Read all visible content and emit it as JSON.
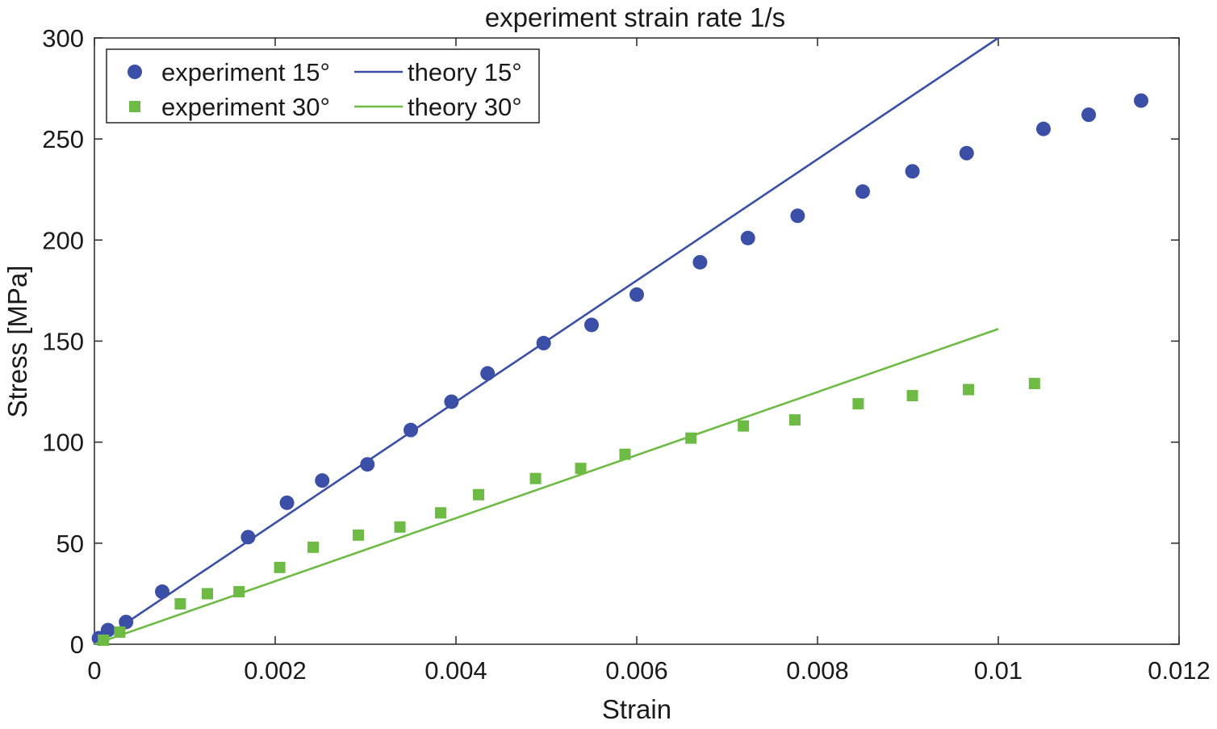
{
  "chart_data": {
    "type": "scatter",
    "title": "experiment strain rate 1/s",
    "xlabel": "Strain",
    "ylabel": "Stress [MPa]",
    "xlim": [
      0,
      0.012
    ],
    "ylim": [
      0,
      300
    ],
    "xticks": [
      0,
      0.002,
      0.004,
      0.006,
      0.008,
      0.01,
      0.012
    ],
    "xtick_labels": [
      "0",
      "0.002",
      "0.004",
      "0.006",
      "0.008",
      "0.01",
      "0.012"
    ],
    "yticks": [
      0,
      50,
      100,
      150,
      200,
      250,
      300
    ],
    "ytick_labels": [
      "0",
      "50",
      "100",
      "150",
      "200",
      "250",
      "300"
    ],
    "grid": false,
    "legend_position": "top-left",
    "series": [
      {
        "name": "experiment 15°",
        "kind": "scatter",
        "marker": "circle",
        "color": "#3a4fa5",
        "x": [
          5e-05,
          0.00015,
          0.00035,
          0.00075,
          0.0017,
          0.00213,
          0.00252,
          0.00302,
          0.0035,
          0.00395,
          0.00435,
          0.00497,
          0.0055,
          0.006,
          0.0067,
          0.00723,
          0.00778,
          0.0085,
          0.00905,
          0.00965,
          0.0105,
          0.011,
          0.01158
        ],
        "y": [
          3,
          7,
          11,
          26,
          53,
          70,
          81,
          89,
          106,
          120,
          134,
          149,
          158,
          173,
          189,
          201,
          212,
          224,
          234,
          243,
          255,
          262,
          269
        ]
      },
      {
        "name": "theory 15°",
        "kind": "line",
        "color": "#3a4fa5",
        "x": [
          0,
          0.01
        ],
        "y": [
          0,
          300
        ]
      },
      {
        "name": "experiment 30°",
        "kind": "scatter",
        "marker": "square",
        "color": "#6dbb45",
        "x": [
          0.0001,
          0.00028,
          0.00095,
          0.00125,
          0.0016,
          0.00205,
          0.00242,
          0.00292,
          0.00338,
          0.00383,
          0.00425,
          0.00488,
          0.00538,
          0.00587,
          0.0066,
          0.00718,
          0.00775,
          0.00845,
          0.00905,
          0.00967,
          0.0104
        ],
        "y": [
          2,
          6,
          20,
          25,
          26,
          38,
          48,
          54,
          58,
          65,
          74,
          82,
          87,
          94,
          102,
          108,
          111,
          119,
          123,
          126,
          129
        ]
      },
      {
        "name": "theory 30°",
        "kind": "line",
        "color": "#6dbb45",
        "x": [
          0,
          0.01
        ],
        "y": [
          0,
          156
        ]
      }
    ]
  }
}
